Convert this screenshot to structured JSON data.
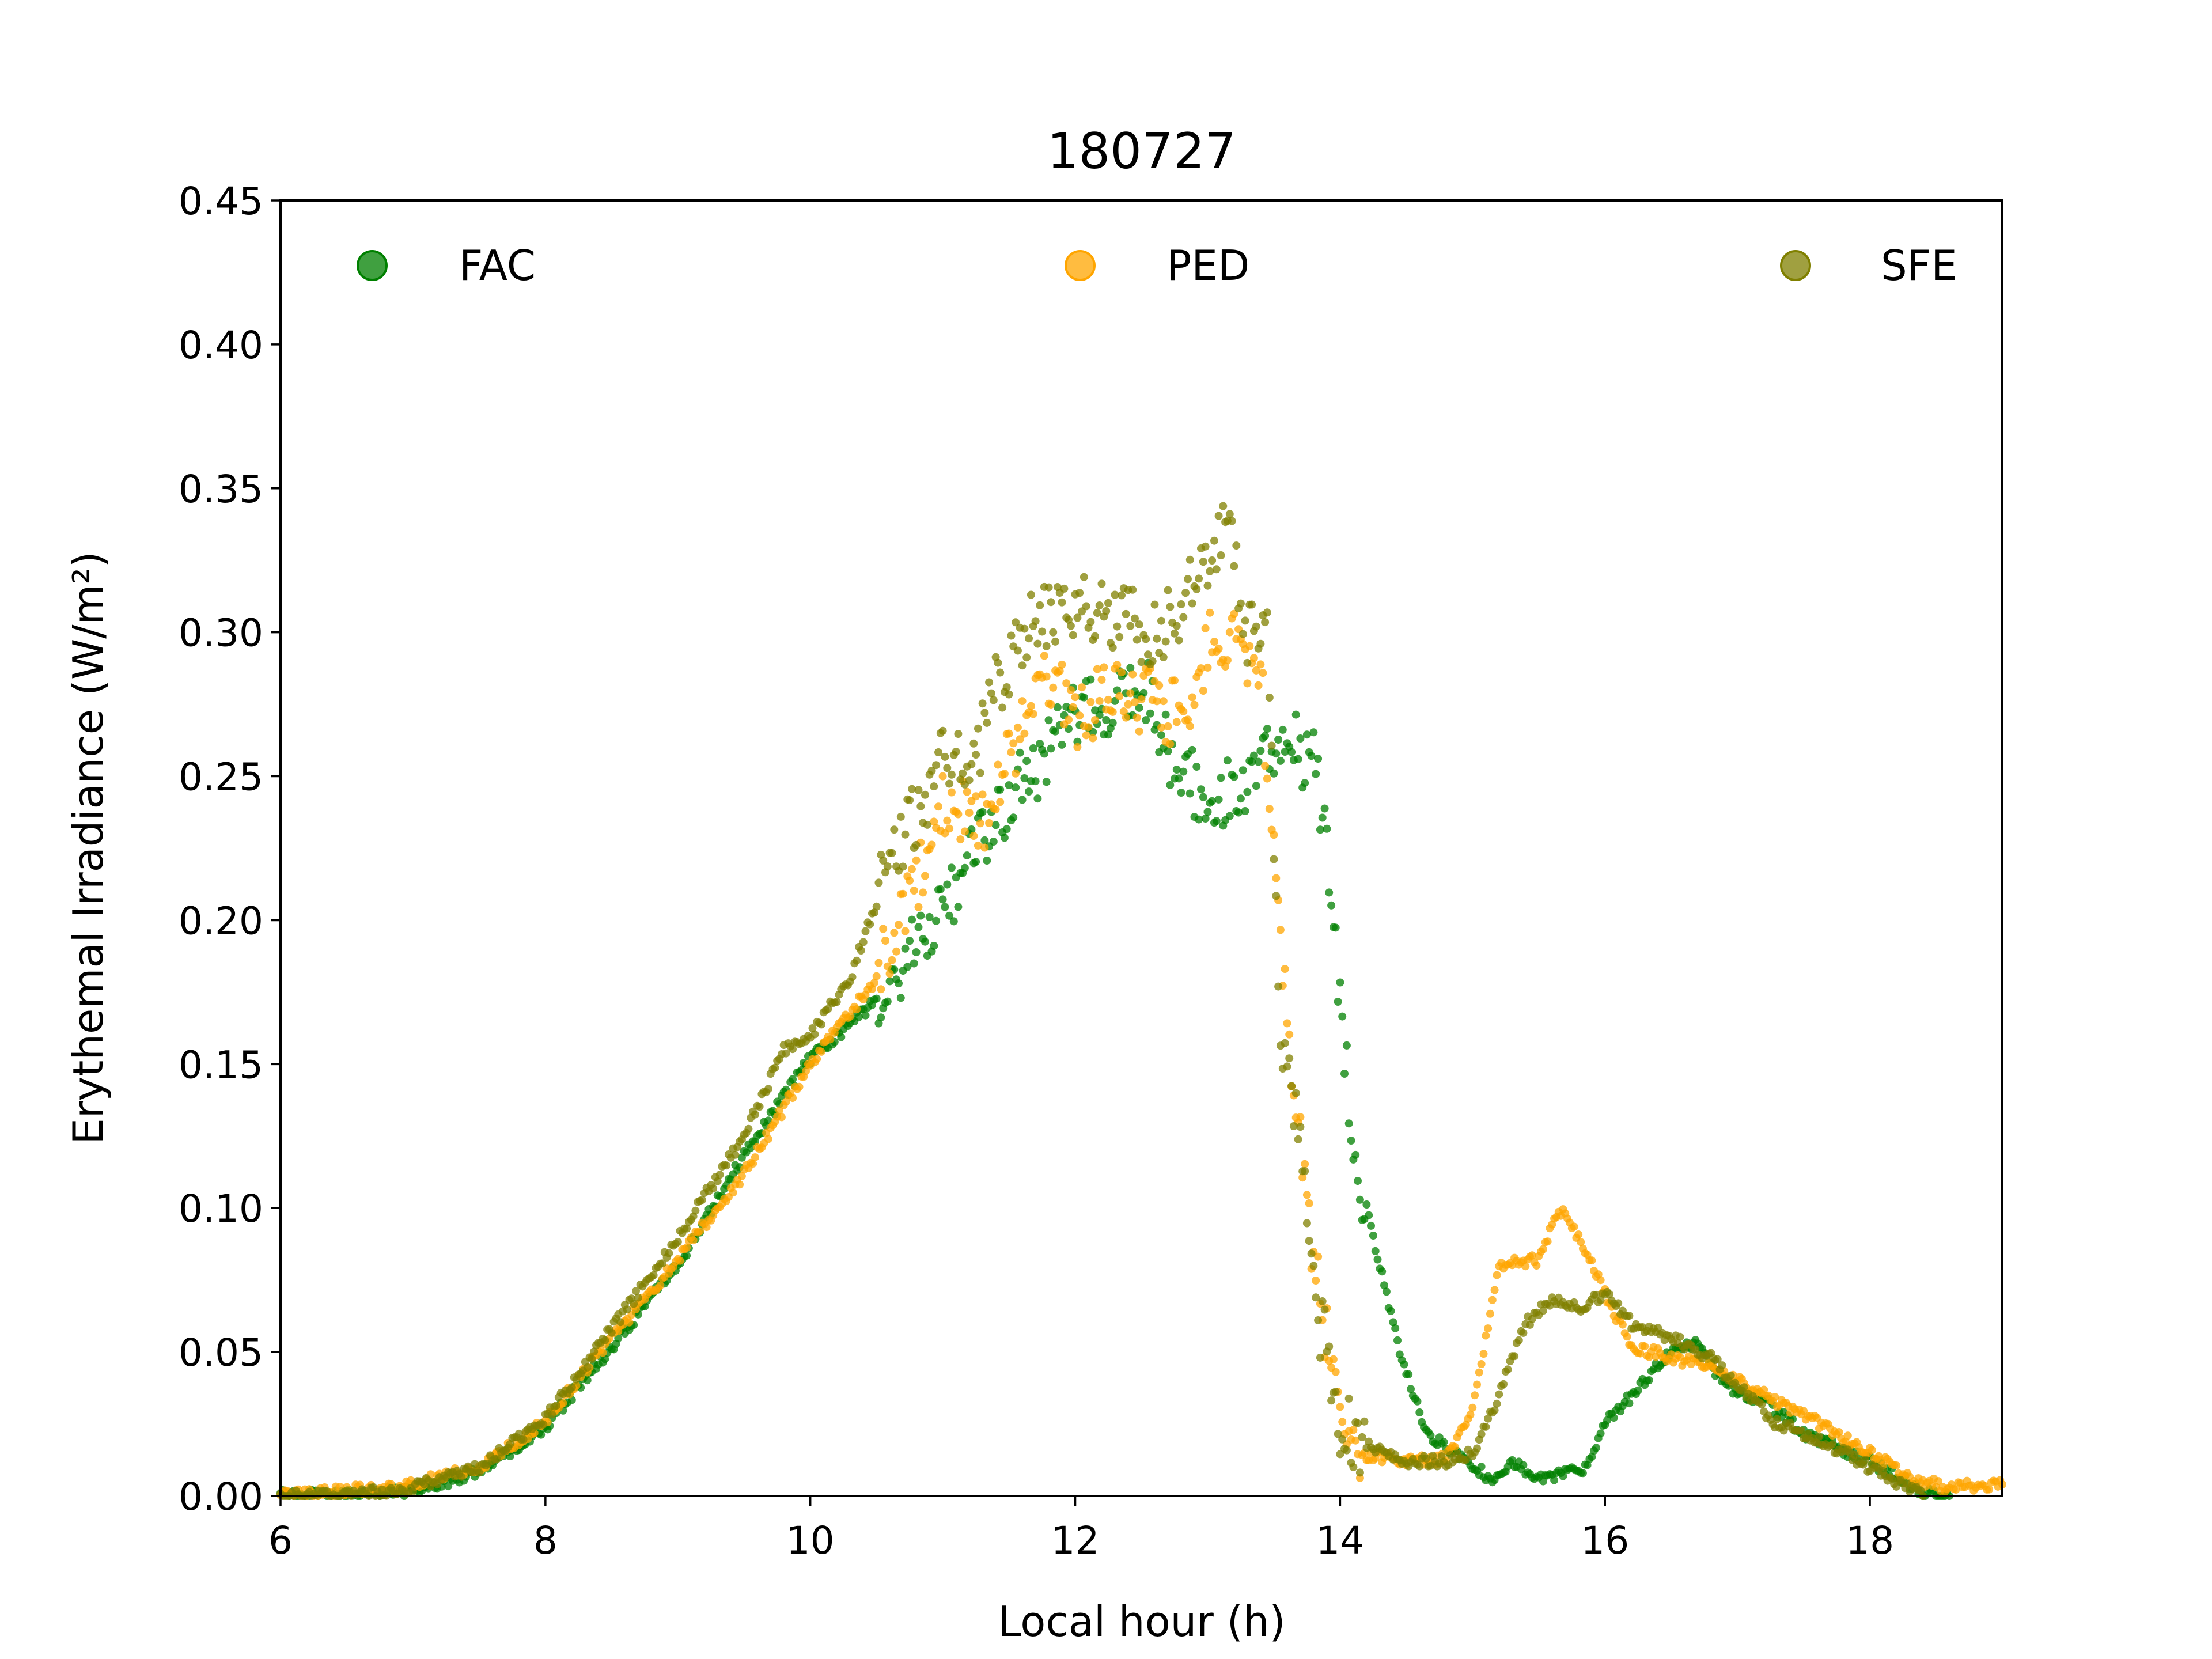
{
  "chart_data": {
    "type": "scatter",
    "title": "180727",
    "xlabel": "Local hour (h)",
    "ylabel": "Erythemal Irradiance (W/m²)",
    "xlim": [
      6,
      19
    ],
    "ylim": [
      0,
      0.45
    ],
    "xticks": [
      6,
      8,
      10,
      12,
      14,
      16,
      18
    ],
    "xtick_labels": [
      "6",
      "8",
      "10",
      "12",
      "14",
      "16",
      "18"
    ],
    "yticks": [
      0,
      0.05,
      0.1,
      0.15,
      0.2,
      0.25,
      0.3,
      0.35,
      0.4,
      0.45
    ],
    "ytick_labels": [
      "0.00",
      "0.05",
      "0.10",
      "0.15",
      "0.20",
      "0.25",
      "0.30",
      "0.35",
      "0.40",
      "0.45"
    ],
    "grid": false,
    "legend_position": "top",
    "series": [
      {
        "name": "FAC",
        "color": "#008000",
        "points": [
          [
            6.0,
            0.0
          ],
          [
            6.5,
            0.0005
          ],
          [
            7.0,
            0.002
          ],
          [
            7.5,
            0.008
          ],
          [
            8.0,
            0.024
          ],
          [
            8.5,
            0.052
          ],
          [
            9.0,
            0.08
          ],
          [
            9.5,
            0.118
          ],
          [
            10.0,
            0.152
          ],
          [
            10.5,
            0.172
          ],
          [
            11.0,
            0.205
          ],
          [
            11.5,
            0.242
          ],
          [
            12.0,
            0.27
          ],
          [
            12.3,
            0.275
          ],
          [
            12.5,
            0.285
          ],
          [
            12.7,
            0.26
          ],
          [
            13.0,
            0.24
          ],
          [
            13.3,
            0.248
          ],
          [
            13.6,
            0.262
          ],
          [
            13.8,
            0.255
          ],
          [
            13.9,
            0.225
          ],
          [
            14.0,
            0.17
          ],
          [
            14.1,
            0.12
          ],
          [
            14.25,
            0.09
          ],
          [
            14.45,
            0.05
          ],
          [
            14.65,
            0.022
          ],
          [
            14.85,
            0.015
          ],
          [
            15.0,
            0.01
          ],
          [
            15.15,
            0.006
          ],
          [
            15.3,
            0.012
          ],
          [
            15.5,
            0.006
          ],
          [
            15.7,
            0.008
          ],
          [
            15.85,
            0.01
          ],
          [
            16.0,
            0.025
          ],
          [
            16.2,
            0.035
          ],
          [
            16.5,
            0.05
          ],
          [
            16.7,
            0.053
          ],
          [
            16.9,
            0.038
          ],
          [
            17.2,
            0.033
          ],
          [
            17.5,
            0.022
          ],
          [
            18.0,
            0.012
          ],
          [
            18.2,
            0.007
          ],
          [
            18.4,
            0.001
          ],
          [
            18.6,
            0.0
          ]
        ]
      },
      {
        "name": "PED",
        "color": "#ffa500",
        "points": [
          [
            6.0,
            0.0
          ],
          [
            6.5,
            0.002
          ],
          [
            7.0,
            0.004
          ],
          [
            7.5,
            0.01
          ],
          [
            8.0,
            0.026
          ],
          [
            8.5,
            0.055
          ],
          [
            9.0,
            0.082
          ],
          [
            9.5,
            0.112
          ],
          [
            10.0,
            0.15
          ],
          [
            10.5,
            0.18
          ],
          [
            10.8,
            0.21
          ],
          [
            11.0,
            0.24
          ],
          [
            11.3,
            0.235
          ],
          [
            11.5,
            0.255
          ],
          [
            11.8,
            0.285
          ],
          [
            12.0,
            0.27
          ],
          [
            12.3,
            0.28
          ],
          [
            12.6,
            0.275
          ],
          [
            12.9,
            0.27
          ],
          [
            13.0,
            0.295
          ],
          [
            13.2,
            0.3
          ],
          [
            13.4,
            0.285
          ],
          [
            13.5,
            0.22
          ],
          [
            13.6,
            0.165
          ],
          [
            13.7,
            0.12
          ],
          [
            13.8,
            0.085
          ],
          [
            13.9,
            0.055
          ],
          [
            14.0,
            0.025
          ],
          [
            14.1,
            0.015
          ],
          [
            14.5,
            0.012
          ],
          [
            14.8,
            0.013
          ],
          [
            15.0,
            0.03
          ],
          [
            15.2,
            0.08
          ],
          [
            15.5,
            0.082
          ],
          [
            15.65,
            0.1
          ],
          [
            15.8,
            0.09
          ],
          [
            16.0,
            0.07
          ],
          [
            16.2,
            0.052
          ],
          [
            16.5,
            0.048
          ],
          [
            16.8,
            0.045
          ],
          [
            17.0,
            0.04
          ],
          [
            17.5,
            0.028
          ],
          [
            18.0,
            0.015
          ],
          [
            18.3,
            0.006
          ],
          [
            18.6,
            0.003
          ],
          [
            19.0,
            0.004
          ]
        ]
      },
      {
        "name": "SFE",
        "color": "#808000",
        "points": [
          [
            6.0,
            0.0
          ],
          [
            6.5,
            0.0
          ],
          [
            7.0,
            0.003
          ],
          [
            7.5,
            0.01
          ],
          [
            8.0,
            0.027
          ],
          [
            8.5,
            0.058
          ],
          [
            9.0,
            0.09
          ],
          [
            9.5,
            0.125
          ],
          [
            9.8,
            0.155
          ],
          [
            10.0,
            0.16
          ],
          [
            10.3,
            0.18
          ],
          [
            10.6,
            0.22
          ],
          [
            10.9,
            0.245
          ],
          [
            11.0,
            0.26
          ],
          [
            11.2,
            0.25
          ],
          [
            11.4,
            0.28
          ],
          [
            11.7,
            0.305
          ],
          [
            12.0,
            0.31
          ],
          [
            12.3,
            0.305
          ],
          [
            12.6,
            0.3
          ],
          [
            12.8,
            0.31
          ],
          [
            13.0,
            0.325
          ],
          [
            13.15,
            0.335
          ],
          [
            13.3,
            0.3
          ],
          [
            13.45,
            0.3
          ],
          [
            13.55,
            0.155
          ],
          [
            13.7,
            0.13
          ],
          [
            13.8,
            0.07
          ],
          [
            13.9,
            0.05
          ],
          [
            14.0,
            0.025
          ],
          [
            14.2,
            0.018
          ],
          [
            14.5,
            0.012
          ],
          [
            14.8,
            0.012
          ],
          [
            15.0,
            0.015
          ],
          [
            15.2,
            0.035
          ],
          [
            15.4,
            0.06
          ],
          [
            15.6,
            0.068
          ],
          [
            15.8,
            0.065
          ],
          [
            16.0,
            0.07
          ],
          [
            16.2,
            0.06
          ],
          [
            16.5,
            0.055
          ],
          [
            16.8,
            0.048
          ],
          [
            17.0,
            0.038
          ],
          [
            17.3,
            0.025
          ],
          [
            17.6,
            0.02
          ],
          [
            18.0,
            0.01
          ],
          [
            18.2,
            0.005
          ],
          [
            18.4,
            0.0
          ]
        ]
      }
    ]
  }
}
